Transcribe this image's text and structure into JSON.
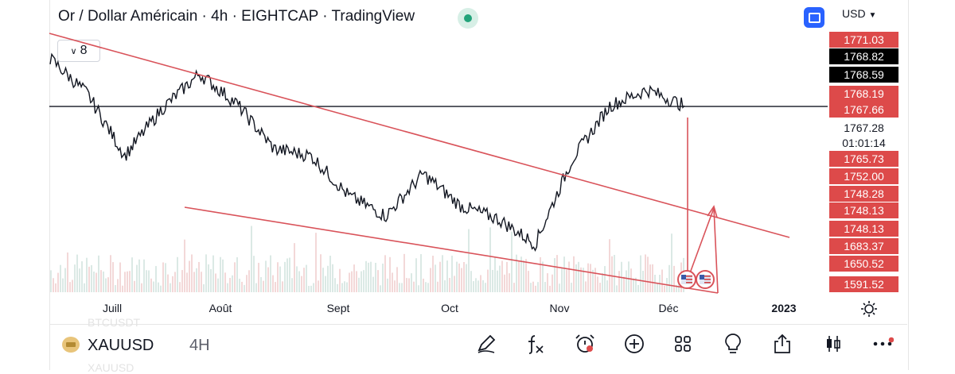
{
  "header": {
    "title": "Or / Dollar Américain · 4h · EIGHTCAP · TradingView",
    "currency": "USD",
    "interval_count": "8"
  },
  "colors": {
    "accent": "#2962ff",
    "label_red": "#dd4a4a",
    "trendline": "#d9535a",
    "live": "#22a37a"
  },
  "price_scale": [
    {
      "text": "1771.03",
      "style": "red"
    },
    {
      "text": "1768.82",
      "style": "black"
    },
    {
      "text": "1768.59",
      "style": "black"
    },
    {
      "text": "1768.19",
      "style": "red"
    },
    {
      "text": "1767.66",
      "style": "red"
    },
    {
      "text": "1767.28",
      "style": "plain"
    },
    {
      "text": "01:01:14",
      "style": "plain"
    },
    {
      "text": "1765.73",
      "style": "red"
    },
    {
      "text": "1752.00",
      "style": "red"
    },
    {
      "text": "1748.28",
      "style": "red"
    },
    {
      "text": "1748.13",
      "style": "red"
    },
    {
      "text": "1748.13",
      "style": "red"
    },
    {
      "text": "1683.37",
      "style": "red"
    },
    {
      "text": "1650.52",
      "style": "red"
    },
    {
      "text": "1591.52",
      "style": "red"
    }
  ],
  "time_axis": [
    "Juill",
    "Août",
    "Sept",
    "Oct",
    "Nov",
    "Déc",
    "2023"
  ],
  "bottom": {
    "symbol": "XAUUSD",
    "timeframe": "4H",
    "ghost_top": "BTCUSDT",
    "ghost_bottom": "XAUUSD",
    "tools": [
      "drawing-tool",
      "indicators",
      "alert",
      "add",
      "layouts",
      "ideas",
      "share",
      "chart-type",
      "more"
    ]
  },
  "chart_data": {
    "type": "line",
    "title": "Or / Dollar Américain · 4h · EIGHTCAP · TradingView",
    "xlabel": "",
    "ylabel": "USD",
    "x": [
      "Juill",
      "Juill",
      "Juill",
      "Août",
      "Août",
      "Août",
      "Sept",
      "Sept",
      "Sept",
      "Oct",
      "Oct",
      "Oct",
      "Oct",
      "Nov",
      "Nov",
      "Nov",
      "Déc",
      "Déc"
    ],
    "series": [
      {
        "name": "XAUUSD 4h",
        "values": [
          1815,
          1780,
          1718,
          1765,
          1800,
          1770,
          1725,
          1718,
          1678,
          1658,
          1700,
          1668,
          1655,
          1630,
          1715,
          1768,
          1784,
          1768
        ]
      }
    ],
    "ylim": [
      1600,
      1830
    ],
    "horizontal_line": 1767.28,
    "annotations": [
      "descending upper trendline",
      "descending lower trendline",
      "projected arrow up"
    ]
  }
}
